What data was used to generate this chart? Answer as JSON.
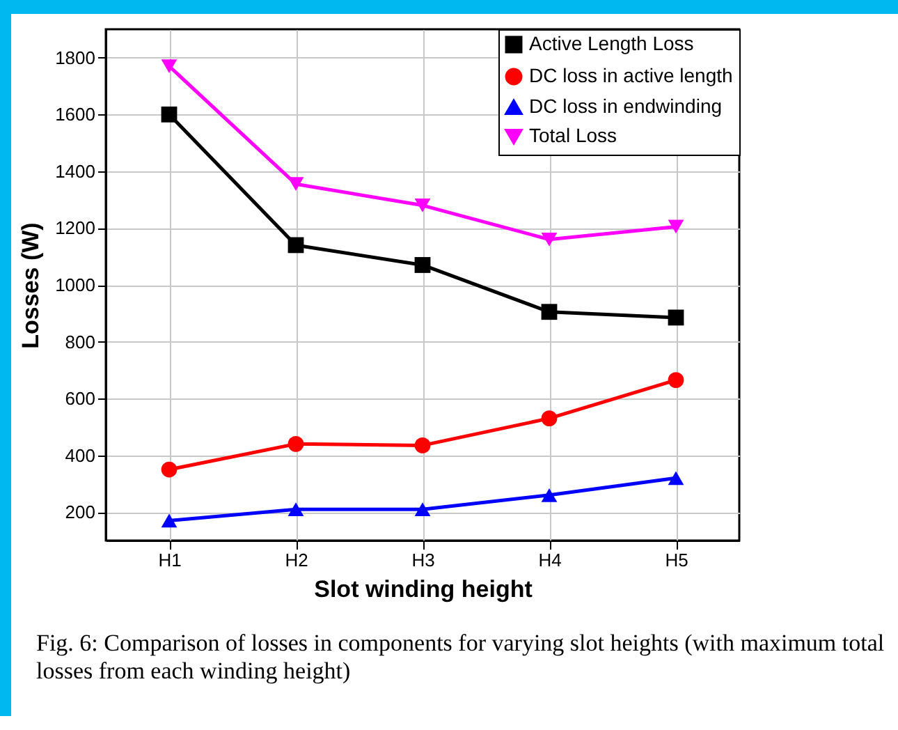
{
  "chart_data": {
    "type": "line",
    "xlabel": "Slot winding height",
    "ylabel": "Losses (W)",
    "categories": [
      "H1",
      "H2",
      "H3",
      "H4",
      "H5"
    ],
    "series": [
      {
        "name": "Active Length Loss",
        "color": "#000000",
        "marker": "square",
        "values": [
          1600,
          1140,
          1070,
          905,
          885
        ]
      },
      {
        "name": "DC loss in active length",
        "color": "#ff0000",
        "marker": "circle",
        "values": [
          350,
          440,
          435,
          530,
          665
        ]
      },
      {
        "name": "DC loss in endwinding",
        "color": "#0000ff",
        "marker": "triangle",
        "values": [
          170,
          210,
          210,
          260,
          320
        ]
      },
      {
        "name": "Total Loss",
        "color": "#ff00ff",
        "marker": "triangle-down",
        "values": [
          1770,
          1355,
          1280,
          1160,
          1205
        ]
      }
    ],
    "ylim": [
      100,
      1900
    ],
    "yticks": [
      200,
      400,
      600,
      800,
      1000,
      1200,
      1400,
      1600,
      1800
    ],
    "grid": true,
    "legend": "top right",
    "line_style": "solid",
    "annotations": [
      "Fig. 6: Comparison of losses in components for varying slot heights (with maximum total losses from each winding height)"
    ]
  }
}
